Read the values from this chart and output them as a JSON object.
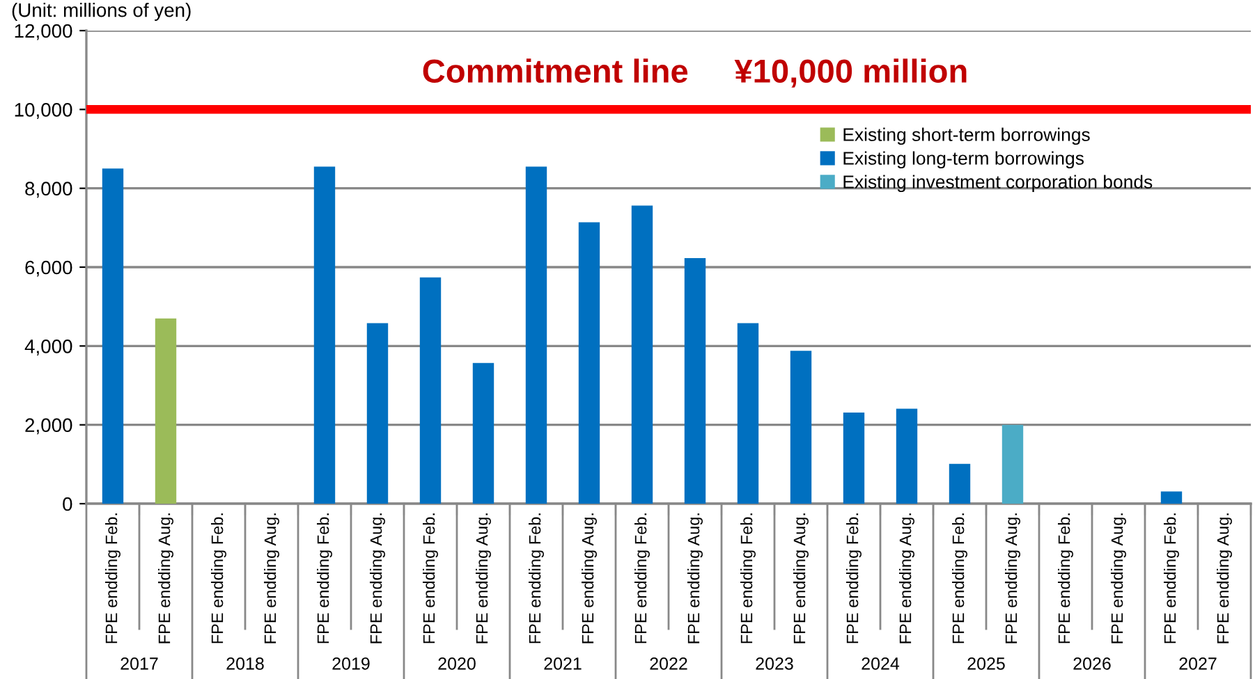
{
  "chart_data": {
    "type": "bar",
    "categories": [
      "FPE endding Feb.",
      "FPE endding Aug.",
      "FPE endding Feb.",
      "FPE endding Aug.",
      "FPE endding Feb.",
      "FPE endding Aug.",
      "FPE endding Feb.",
      "FPE endding Aug.",
      "FPE endding Feb.",
      "FPE endding Aug.",
      "FPE endding Feb.",
      "FPE endding Aug.",
      "FPE endding Feb.",
      "FPE endding Aug.",
      "FPE endding Feb.",
      "FPE endding Aug.",
      "FPE endding Feb.",
      "FPE endding Aug.",
      "FPE endding Feb.",
      "FPE endding Aug.",
      "FPE endding Feb.",
      "FPE endding Aug."
    ],
    "series": [
      {
        "name": "Existing short-term borrowings",
        "color": "#9bbb59",
        "values": [
          null,
          4700,
          null,
          null,
          null,
          null,
          null,
          null,
          null,
          null,
          null,
          null,
          null,
          null,
          null,
          null,
          null,
          null,
          null,
          null,
          null,
          null
        ]
      },
      {
        "name": "Existing long-term borrowings",
        "color": "#0070c0",
        "values": [
          8500,
          null,
          null,
          null,
          8550,
          4580,
          5740,
          3570,
          8550,
          7140,
          7560,
          6230,
          4580,
          3880,
          2310,
          2410,
          1010,
          null,
          null,
          null,
          310,
          null
        ]
      },
      {
        "name": "Existing investment corporation bonds",
        "color": "#4bacc6",
        "values": [
          null,
          null,
          null,
          null,
          null,
          null,
          null,
          null,
          null,
          null,
          null,
          null,
          null,
          null,
          null,
          null,
          null,
          2000,
          null,
          null,
          null,
          null
        ]
      }
    ],
    "ylim": [
      0,
      12000
    ],
    "yticks": [
      {
        "value": 0,
        "label": "0"
      },
      {
        "value": 2000,
        "label": "2,000"
      },
      {
        "value": 4000,
        "label": "4,000"
      },
      {
        "value": 6000,
        "label": "6,000"
      },
      {
        "value": 8000,
        "label": "8,000"
      },
      {
        "value": 10000,
        "label": "10,000"
      },
      {
        "value": 12000,
        "label": "12,000"
      }
    ],
    "grid": "y",
    "legend": "top right",
    "ref_lines": [
      {
        "axis": "y",
        "value": 10000,
        "label": "Commitment line     ¥10,000 million",
        "color": "#ff0000"
      }
    ],
    "annotations": [
      "(Unit: millions of yen)",
      "2017",
      "2018",
      "2019",
      "2020",
      "2021",
      "2022",
      "2023",
      "2024",
      "2025",
      "2026",
      "2027"
    ]
  }
}
